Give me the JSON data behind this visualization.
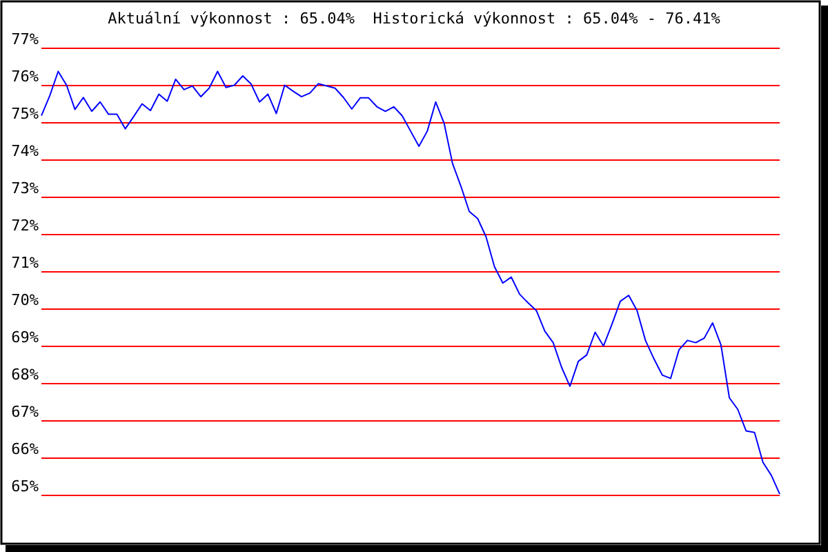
{
  "chart_data": {
    "type": "line",
    "title": "Aktuální výkonnost : 65.04%  Historická výkonnost : 65.04% - 76.41%",
    "categories": [
      null,
      null,
      null,
      null,
      null,
      null,
      null,
      null,
      null,
      null,
      null,
      null,
      null,
      null,
      null,
      null,
      null,
      null,
      null,
      null,
      null,
      null,
      null,
      null,
      null,
      null,
      null,
      null,
      null,
      null,
      null,
      null,
      null,
      null,
      null,
      null,
      null,
      null,
      null,
      null,
      null,
      null,
      null,
      null,
      null,
      null,
      null,
      null,
      null,
      null,
      null,
      null,
      null,
      null,
      null,
      null,
      null,
      null,
      null,
      null,
      null,
      null,
      null,
      null,
      null,
      null,
      null,
      null,
      null,
      null,
      null,
      null,
      null,
      null,
      null,
      null,
      null,
      null,
      null,
      null,
      null,
      null,
      null,
      null,
      null,
      null,
      null,
      null,
      null
    ],
    "series": [
      {
        "color": "#0000ff",
        "values": [
          75.19,
          75.73,
          76.38,
          76.01,
          75.36,
          75.68,
          75.31,
          75.56,
          75.23,
          75.23,
          74.84,
          75.17,
          75.51,
          75.33,
          75.77,
          75.58,
          76.17,
          75.89,
          75.99,
          75.7,
          75.93,
          76.38,
          75.95,
          76.01,
          76.26,
          76.04,
          75.56,
          75.77,
          75.25,
          76.01,
          75.85,
          75.7,
          75.8,
          76.05,
          75.99,
          75.93,
          75.68,
          75.37,
          75.67,
          75.67,
          75.43,
          75.31,
          75.43,
          75.19,
          74.78,
          74.37,
          74.78,
          75.56,
          74.99,
          73.91,
          73.3,
          72.62,
          72.43,
          71.94,
          71.14,
          70.7,
          70.86,
          70.4,
          70.17,
          69.96,
          69.41,
          69.1,
          68.44,
          67.93,
          68.6,
          68.77,
          69.38,
          69.01,
          69.59,
          70.21,
          70.37,
          69.96,
          69.16,
          68.67,
          68.23,
          68.14,
          68.91,
          69.16,
          69.1,
          69.22,
          69.63,
          69.04,
          67.62,
          67.31,
          66.73,
          66.69,
          65.89,
          65.54,
          65.04
        ]
      }
    ],
    "ylim": [
      65,
      77
    ],
    "yticks": [
      {
        "value": 65,
        "label": "65%"
      },
      {
        "value": 66,
        "label": "66%"
      },
      {
        "value": 67,
        "label": "67%"
      },
      {
        "value": 68,
        "label": "68%"
      },
      {
        "value": 69,
        "label": "69%"
      },
      {
        "value": 70,
        "label": "70%"
      },
      {
        "value": 71,
        "label": "71%"
      },
      {
        "value": 72,
        "label": "72%"
      },
      {
        "value": 73,
        "label": "73%"
      },
      {
        "value": 74,
        "label": "74%"
      },
      {
        "value": 75,
        "label": "75%"
      },
      {
        "value": 76,
        "label": "76%"
      },
      {
        "value": 77,
        "label": "77%"
      }
    ],
    "grid": "y",
    "tick_labels": "y"
  }
}
